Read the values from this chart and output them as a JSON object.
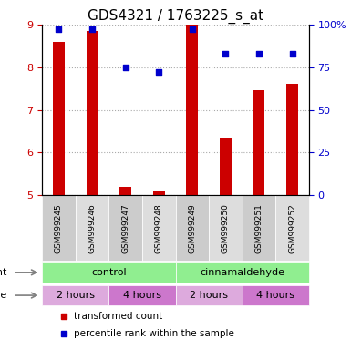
{
  "title": "GDS4321 / 1763225_s_at",
  "samples": [
    "GSM999245",
    "GSM999246",
    "GSM999247",
    "GSM999248",
    "GSM999249",
    "GSM999250",
    "GSM999251",
    "GSM999252"
  ],
  "red_values": [
    8.6,
    8.85,
    5.2,
    5.1,
    9.0,
    6.35,
    7.45,
    7.6
  ],
  "blue_values": [
    97,
    97,
    75,
    72,
    97,
    83,
    83,
    83
  ],
  "ylim_left": [
    5,
    9
  ],
  "ylim_right": [
    0,
    100
  ],
  "yticks_left": [
    5,
    6,
    7,
    8,
    9
  ],
  "yticks_right": [
    0,
    25,
    50,
    75,
    100
  ],
  "ytick_labels_right": [
    "0",
    "25",
    "50",
    "75",
    "100%"
  ],
  "bar_color": "#cc0000",
  "dot_color": "#0000cc",
  "bar_width": 0.35,
  "grid_color": "#aaaaaa",
  "legend_red_label": "transformed count",
  "legend_blue_label": "percentile rank within the sample",
  "title_fontsize": 11,
  "tick_fontsize": 8,
  "agent_groups": [
    {
      "label": "control",
      "start": 0,
      "end": 4,
      "color": "#90ee90"
    },
    {
      "label": "cinnamaldehyde",
      "start": 4,
      "end": 8,
      "color": "#90ee90"
    }
  ],
  "time_groups": [
    {
      "label": "2 hours",
      "start": 0,
      "end": 2,
      "color": "#ddaadd"
    },
    {
      "label": "4 hours",
      "start": 2,
      "end": 4,
      "color": "#cc77cc"
    },
    {
      "label": "2 hours",
      "start": 4,
      "end": 6,
      "color": "#ddaadd"
    },
    {
      "label": "4 hours",
      "start": 6,
      "end": 8,
      "color": "#cc77cc"
    }
  ]
}
